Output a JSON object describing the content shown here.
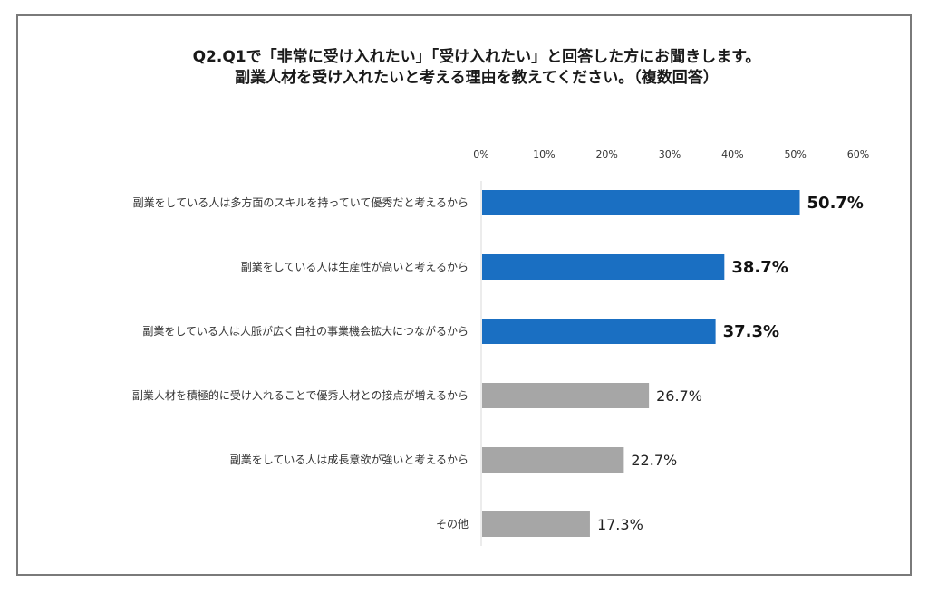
{
  "chart_data": {
    "type": "bar",
    "orientation": "horizontal",
    "title": "Q2.Q1で「非常に受け入れたい」「受け入れたい」と回答した方にお聞きします。",
    "subtitle": "副業人材を受け入れたいと考える理由を教えてください。（複数回答）",
    "xlim": [
      0,
      60
    ],
    "x_ticks": [
      "0%",
      "10%",
      "20%",
      "30%",
      "40%",
      "50%",
      "60%"
    ],
    "tick_values": [
      0,
      10,
      20,
      30,
      40,
      50,
      60
    ],
    "categories": [
      "副業をしている人は多方面のスキルを持っていて優秀だと考えるから",
      "副業をしている人は生産性が高いと考えるから",
      "副業をしている人は人脈が広く自社の事業機会拡大につながるから",
      "副業人材を積極的に受け入れることで優秀人材との接点が増えるから",
      "副業をしている人は成長意欲が強いと考えるから",
      "その他"
    ],
    "values": [
      50.7,
      38.7,
      37.3,
      26.7,
      22.7,
      17.3
    ],
    "value_labels": [
      "50.7%",
      "38.7%",
      "37.3%",
      "26.7%",
      "22.7%",
      "17.3%"
    ],
    "highlight": [
      true,
      true,
      true,
      false,
      false,
      false
    ],
    "colors": {
      "highlight": "#1a6fc2",
      "other": "#a6a6a6"
    },
    "grid": false,
    "legend": "none"
  }
}
